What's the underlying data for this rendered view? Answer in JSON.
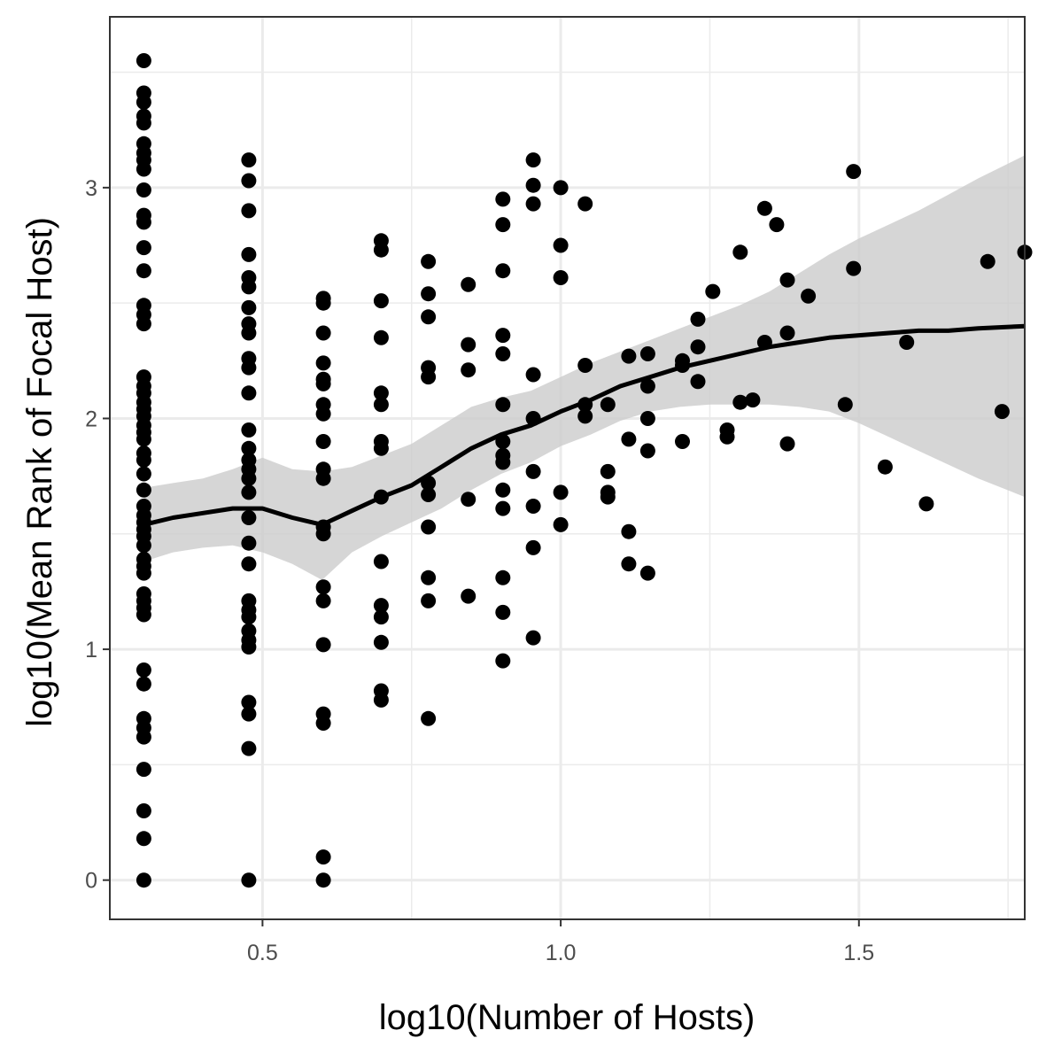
{
  "chart_data": {
    "type": "scatter",
    "title": "",
    "xlabel": "log10(Number of Hosts)",
    "ylabel": "log10(Mean Rank of Focal Host)",
    "xlim": [
      0.244,
      1.778
    ],
    "ylim": [
      -0.17,
      3.74
    ],
    "x_ticks": [
      0.5,
      1.0,
      1.5
    ],
    "x_tick_labels": [
      "0.5",
      "1.0",
      "1.5"
    ],
    "y_ticks": [
      0,
      1,
      2,
      3
    ],
    "y_tick_labels": [
      "0",
      "1",
      "2",
      "3"
    ],
    "grid": true,
    "theme": "black-and-white",
    "colors": {
      "points": "#000000",
      "smooth_line": "#000000",
      "confidence_band": "#cccccc",
      "grid": "#ebebeb",
      "panel_border": "#333333"
    },
    "series": [
      {
        "type": "scatter",
        "points": [
          [
            0.301,
            3.55
          ],
          [
            0.301,
            3.41
          ],
          [
            0.301,
            3.37
          ],
          [
            0.301,
            3.31
          ],
          [
            0.301,
            3.28
          ],
          [
            0.301,
            3.19
          ],
          [
            0.301,
            3.15
          ],
          [
            0.301,
            3.12
          ],
          [
            0.301,
            3.08
          ],
          [
            0.301,
            2.99
          ],
          [
            0.301,
            2.88
          ],
          [
            0.301,
            2.85
          ],
          [
            0.301,
            2.74
          ],
          [
            0.301,
            2.64
          ],
          [
            0.301,
            2.49
          ],
          [
            0.301,
            2.45
          ],
          [
            0.301,
            2.41
          ],
          [
            0.301,
            2.18
          ],
          [
            0.301,
            2.14
          ],
          [
            0.301,
            2.11
          ],
          [
            0.301,
            2.07
          ],
          [
            0.301,
            2.04
          ],
          [
            0.301,
            2.01
          ],
          [
            0.301,
            1.97
          ],
          [
            0.301,
            1.94
          ],
          [
            0.301,
            1.91
          ],
          [
            0.301,
            1.85
          ],
          [
            0.301,
            1.82
          ],
          [
            0.301,
            1.76
          ],
          [
            0.301,
            1.69
          ],
          [
            0.301,
            1.62
          ],
          [
            0.301,
            1.58
          ],
          [
            0.301,
            1.55
          ],
          [
            0.301,
            1.52
          ],
          [
            0.301,
            1.49
          ],
          [
            0.301,
            1.45
          ],
          [
            0.301,
            1.39
          ],
          [
            0.301,
            1.36
          ],
          [
            0.301,
            1.33
          ],
          [
            0.301,
            1.24
          ],
          [
            0.301,
            1.21
          ],
          [
            0.301,
            1.18
          ],
          [
            0.301,
            1.15
          ],
          [
            0.301,
            0.91
          ],
          [
            0.301,
            0.85
          ],
          [
            0.301,
            0.7
          ],
          [
            0.301,
            0.66
          ],
          [
            0.301,
            0.62
          ],
          [
            0.301,
            0.48
          ],
          [
            0.301,
            0.3
          ],
          [
            0.301,
            0.18
          ],
          [
            0.301,
            0.0
          ],
          [
            0.477,
            3.12
          ],
          [
            0.477,
            3.03
          ],
          [
            0.477,
            2.9
          ],
          [
            0.477,
            2.71
          ],
          [
            0.477,
            2.61
          ],
          [
            0.477,
            2.57
          ],
          [
            0.477,
            2.48
          ],
          [
            0.477,
            2.41
          ],
          [
            0.477,
            2.37
          ],
          [
            0.477,
            2.26
          ],
          [
            0.477,
            2.22
          ],
          [
            0.477,
            2.11
          ],
          [
            0.477,
            1.95
          ],
          [
            0.477,
            1.87
          ],
          [
            0.477,
            1.82
          ],
          [
            0.477,
            1.78
          ],
          [
            0.477,
            1.74
          ],
          [
            0.477,
            1.68
          ],
          [
            0.477,
            1.57
          ],
          [
            0.477,
            1.46
          ],
          [
            0.477,
            1.37
          ],
          [
            0.477,
            1.21
          ],
          [
            0.477,
            1.17
          ],
          [
            0.477,
            1.14
          ],
          [
            0.477,
            1.08
          ],
          [
            0.477,
            1.04
          ],
          [
            0.477,
            1.01
          ],
          [
            0.477,
            0.77
          ],
          [
            0.477,
            0.72
          ],
          [
            0.477,
            0.57
          ],
          [
            0.477,
            0.0
          ],
          [
            0.602,
            2.52
          ],
          [
            0.602,
            2.5
          ],
          [
            0.602,
            2.37
          ],
          [
            0.602,
            2.24
          ],
          [
            0.602,
            2.17
          ],
          [
            0.602,
            2.15
          ],
          [
            0.602,
            2.06
          ],
          [
            0.602,
            2.02
          ],
          [
            0.602,
            1.9
          ],
          [
            0.602,
            1.78
          ],
          [
            0.602,
            1.74
          ],
          [
            0.602,
            1.53
          ],
          [
            0.602,
            1.5
          ],
          [
            0.602,
            1.27
          ],
          [
            0.602,
            1.21
          ],
          [
            0.602,
            1.02
          ],
          [
            0.602,
            0.72
          ],
          [
            0.602,
            0.68
          ],
          [
            0.602,
            0.1
          ],
          [
            0.602,
            0.0
          ],
          [
            0.699,
            2.77
          ],
          [
            0.699,
            2.73
          ],
          [
            0.699,
            2.51
          ],
          [
            0.699,
            2.35
          ],
          [
            0.699,
            2.11
          ],
          [
            0.699,
            2.06
          ],
          [
            0.699,
            1.9
          ],
          [
            0.699,
            1.87
          ],
          [
            0.699,
            1.66
          ],
          [
            0.699,
            1.38
          ],
          [
            0.699,
            1.19
          ],
          [
            0.699,
            1.14
          ],
          [
            0.699,
            1.03
          ],
          [
            0.699,
            0.82
          ],
          [
            0.699,
            0.78
          ],
          [
            0.778,
            2.68
          ],
          [
            0.778,
            2.54
          ],
          [
            0.778,
            2.44
          ],
          [
            0.778,
            2.22
          ],
          [
            0.778,
            2.18
          ],
          [
            0.778,
            1.72
          ],
          [
            0.778,
            1.67
          ],
          [
            0.778,
            1.53
          ],
          [
            0.778,
            1.31
          ],
          [
            0.778,
            1.21
          ],
          [
            0.778,
            0.7
          ],
          [
            0.845,
            2.58
          ],
          [
            0.845,
            2.32
          ],
          [
            0.845,
            2.21
          ],
          [
            0.845,
            1.65
          ],
          [
            0.845,
            1.23
          ],
          [
            0.903,
            2.95
          ],
          [
            0.903,
            2.84
          ],
          [
            0.903,
            2.64
          ],
          [
            0.903,
            2.36
          ],
          [
            0.903,
            2.28
          ],
          [
            0.903,
            2.06
          ],
          [
            0.903,
            1.9
          ],
          [
            0.903,
            1.84
          ],
          [
            0.903,
            1.81
          ],
          [
            0.903,
            1.69
          ],
          [
            0.903,
            1.61
          ],
          [
            0.903,
            1.31
          ],
          [
            0.903,
            1.16
          ],
          [
            0.903,
            0.95
          ],
          [
            0.954,
            3.12
          ],
          [
            0.954,
            3.01
          ],
          [
            0.954,
            2.93
          ],
          [
            0.954,
            2.19
          ],
          [
            0.954,
            2.0
          ],
          [
            0.954,
            1.77
          ],
          [
            0.954,
            1.62
          ],
          [
            0.954,
            1.44
          ],
          [
            0.954,
            1.05
          ],
          [
            1.0,
            3.0
          ],
          [
            1.0,
            2.75
          ],
          [
            1.0,
            2.61
          ],
          [
            1.0,
            1.68
          ],
          [
            1.0,
            1.54
          ],
          [
            1.041,
            2.93
          ],
          [
            1.041,
            2.23
          ],
          [
            1.041,
            2.06
          ],
          [
            1.041,
            2.01
          ],
          [
            1.079,
            2.06
          ],
          [
            1.079,
            1.77
          ],
          [
            1.079,
            1.68
          ],
          [
            1.079,
            1.66
          ],
          [
            1.114,
            2.27
          ],
          [
            1.114,
            1.91
          ],
          [
            1.114,
            1.51
          ],
          [
            1.114,
            1.37
          ],
          [
            1.146,
            2.28
          ],
          [
            1.146,
            2.14
          ],
          [
            1.146,
            2.0
          ],
          [
            1.146,
            1.86
          ],
          [
            1.146,
            1.33
          ],
          [
            1.204,
            2.25
          ],
          [
            1.204,
            2.23
          ],
          [
            1.204,
            1.9
          ],
          [
            1.23,
            2.43
          ],
          [
            1.23,
            2.31
          ],
          [
            1.23,
            2.16
          ],
          [
            1.255,
            2.55
          ],
          [
            1.279,
            1.95
          ],
          [
            1.279,
            1.92
          ],
          [
            1.301,
            2.72
          ],
          [
            1.301,
            2.07
          ],
          [
            1.322,
            2.08
          ],
          [
            1.342,
            2.91
          ],
          [
            1.342,
            2.33
          ],
          [
            1.362,
            2.84
          ],
          [
            1.38,
            2.6
          ],
          [
            1.38,
            2.37
          ],
          [
            1.38,
            1.89
          ],
          [
            1.415,
            2.53
          ],
          [
            1.477,
            2.06
          ],
          [
            1.491,
            3.07
          ],
          [
            1.491,
            2.65
          ],
          [
            1.544,
            1.79
          ],
          [
            1.58,
            2.33
          ],
          [
            1.613,
            1.63
          ],
          [
            1.716,
            2.68
          ],
          [
            1.74,
            2.03
          ],
          [
            1.778,
            2.72
          ]
        ]
      },
      {
        "type": "line",
        "smooth_line": [
          [
            0.301,
            1.54
          ],
          [
            0.35,
            1.57
          ],
          [
            0.4,
            1.59
          ],
          [
            0.45,
            1.61
          ],
          [
            0.5,
            1.61
          ],
          [
            0.55,
            1.57
          ],
          [
            0.6,
            1.54
          ],
          [
            0.65,
            1.6
          ],
          [
            0.7,
            1.66
          ],
          [
            0.75,
            1.71
          ],
          [
            0.8,
            1.79
          ],
          [
            0.85,
            1.87
          ],
          [
            0.9,
            1.93
          ],
          [
            0.95,
            1.97
          ],
          [
            1.0,
            2.03
          ],
          [
            1.05,
            2.08
          ],
          [
            1.1,
            2.14
          ],
          [
            1.15,
            2.18
          ],
          [
            1.2,
            2.22
          ],
          [
            1.25,
            2.25
          ],
          [
            1.3,
            2.28
          ],
          [
            1.35,
            2.31
          ],
          [
            1.4,
            2.33
          ],
          [
            1.45,
            2.35
          ],
          [
            1.5,
            2.36
          ],
          [
            1.55,
            2.37
          ],
          [
            1.6,
            2.38
          ],
          [
            1.65,
            2.38
          ],
          [
            1.7,
            2.39
          ],
          [
            1.778,
            2.4
          ]
        ],
        "band_upper": [
          [
            0.301,
            1.7
          ],
          [
            0.35,
            1.72
          ],
          [
            0.4,
            1.74
          ],
          [
            0.45,
            1.78
          ],
          [
            0.5,
            1.83
          ],
          [
            0.55,
            1.78
          ],
          [
            0.6,
            1.77
          ],
          [
            0.65,
            1.79
          ],
          [
            0.7,
            1.84
          ],
          [
            0.75,
            1.89
          ],
          [
            0.8,
            1.97
          ],
          [
            0.85,
            2.05
          ],
          [
            0.9,
            2.09
          ],
          [
            0.95,
            2.12
          ],
          [
            1.0,
            2.18
          ],
          [
            1.05,
            2.24
          ],
          [
            1.1,
            2.29
          ],
          [
            1.15,
            2.34
          ],
          [
            1.2,
            2.39
          ],
          [
            1.25,
            2.44
          ],
          [
            1.3,
            2.49
          ],
          [
            1.35,
            2.55
          ],
          [
            1.4,
            2.63
          ],
          [
            1.45,
            2.71
          ],
          [
            1.5,
            2.78
          ],
          [
            1.55,
            2.84
          ],
          [
            1.6,
            2.9
          ],
          [
            1.65,
            2.97
          ],
          [
            1.7,
            3.04
          ],
          [
            1.778,
            3.14
          ]
        ],
        "band_lower": [
          [
            0.301,
            1.38
          ],
          [
            0.35,
            1.42
          ],
          [
            0.4,
            1.44
          ],
          [
            0.45,
            1.45
          ],
          [
            0.5,
            1.42
          ],
          [
            0.55,
            1.37
          ],
          [
            0.6,
            1.3
          ],
          [
            0.65,
            1.42
          ],
          [
            0.7,
            1.49
          ],
          [
            0.75,
            1.55
          ],
          [
            0.8,
            1.61
          ],
          [
            0.85,
            1.69
          ],
          [
            0.9,
            1.76
          ],
          [
            0.95,
            1.81
          ],
          [
            1.0,
            1.88
          ],
          [
            1.05,
            1.93
          ],
          [
            1.1,
            1.99
          ],
          [
            1.15,
            2.03
          ],
          [
            1.2,
            2.05
          ],
          [
            1.25,
            2.06
          ],
          [
            1.3,
            2.06
          ],
          [
            1.35,
            2.06
          ],
          [
            1.4,
            2.05
          ],
          [
            1.45,
            2.03
          ],
          [
            1.5,
            1.98
          ],
          [
            1.55,
            1.92
          ],
          [
            1.6,
            1.86
          ],
          [
            1.65,
            1.8
          ],
          [
            1.7,
            1.74
          ],
          [
            1.778,
            1.66
          ]
        ]
      }
    ]
  }
}
